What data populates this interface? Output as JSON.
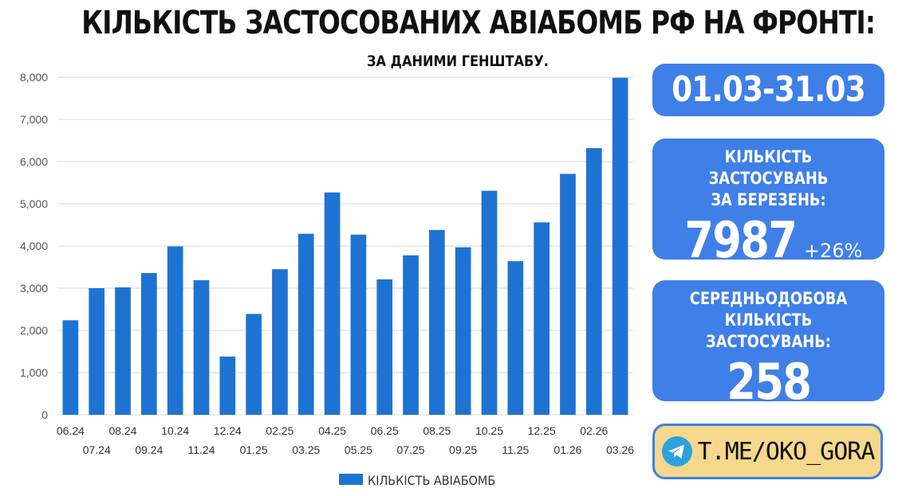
{
  "header": {
    "title": "КІЛЬКІСТЬ ЗАСТОСОВАНИХ АВІАБОМБ РФ НА ФРОНТІ:",
    "subtitle": "ЗА ДАНИМИ ГЕНШТАБУ."
  },
  "cards": {
    "period": "01.03-31.03",
    "monthly_label": "КІЛЬКІСТЬ ЗАСТОСУВАНЬ\nЗА БЕРЕЗЕНЬ:",
    "monthly_value": "7987",
    "monthly_change": "+26%",
    "daily_label": "СЕРЕДНЬОДОБОВА\nКІЛЬКІСТЬ ЗАСТОСУВАНЬ:",
    "daily_value": "258",
    "link_text": "T.ME/OKO_GORA",
    "link_icon": "telegram-icon"
  },
  "colors": {
    "bar": "#1e73d2",
    "card": "#3f7fe8",
    "link_bg": "#f5d88b",
    "grid": "#d9d9d9"
  },
  "chart_data": {
    "type": "bar",
    "categories": [
      "06.24",
      "07.24",
      "08.24",
      "09.24",
      "10.24",
      "11.24",
      "12.24",
      "01.25",
      "02.25",
      "03.25",
      "04.25",
      "05.25",
      "06.25",
      "07.25",
      "08.25",
      "09.25",
      "10.25",
      "11.25",
      "12.25",
      "01.26",
      "02.26",
      "03.26"
    ],
    "series": [
      {
        "name": "КІЛЬКІСТЬ АВІАБОМБ",
        "values": [
          2240,
          3000,
          3020,
          3360,
          3990,
          3190,
          1380,
          2390,
          3450,
          4290,
          5270,
          4270,
          3210,
          3780,
          4380,
          3970,
          5310,
          3640,
          4560,
          5710,
          6320,
          7987
        ]
      }
    ],
    "ylim": [
      0,
      8000
    ],
    "yticks": [
      "0",
      "1,000",
      "2,000",
      "3,000",
      "4,000",
      "5,000",
      "6,000",
      "7,000",
      "8,000"
    ],
    "grid": true,
    "legend": "bottom"
  }
}
